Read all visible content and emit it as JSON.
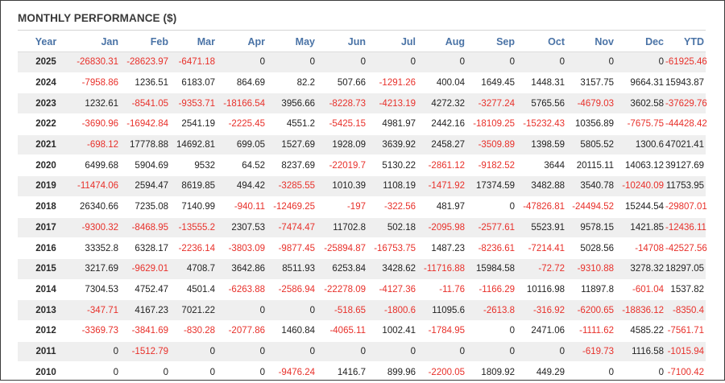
{
  "title": "MONTHLY PERFORMANCE ($)",
  "colors": {
    "negative": "#e8302a",
    "header": "#4a73a6",
    "stripe": "#efefef"
  },
  "columns": [
    "Year",
    "Jan",
    "Feb",
    "Mar",
    "Apr",
    "May",
    "Jun",
    "Jul",
    "Aug",
    "Sep",
    "Oct",
    "Nov",
    "Dec",
    "YTD"
  ],
  "chart_data": {
    "type": "table",
    "title": "MONTHLY PERFORMANCE ($)",
    "columns": [
      "Year",
      "Jan",
      "Feb",
      "Mar",
      "Apr",
      "May",
      "Jun",
      "Jul",
      "Aug",
      "Sep",
      "Oct",
      "Nov",
      "Dec",
      "YTD"
    ],
    "rows": [
      [
        "2025",
        "-26830.31",
        "-28623.97",
        "-6471.18",
        "0",
        "0",
        "0",
        "0",
        "0",
        "0",
        "0",
        "0",
        "0",
        "-61925.46"
      ],
      [
        "2024",
        "-7958.86",
        "1236.51",
        "6183.07",
        "864.69",
        "82.2",
        "507.66",
        "-1291.26",
        "400.04",
        "1649.45",
        "1448.31",
        "3157.75",
        "9664.31",
        "15943.87"
      ],
      [
        "2023",
        "1232.61",
        "-8541.05",
        "-9353.71",
        "-18166.54",
        "3956.66",
        "-8228.73",
        "-4213.19",
        "4272.32",
        "-3277.24",
        "5765.56",
        "-4679.03",
        "3602.58",
        "-37629.76"
      ],
      [
        "2022",
        "-3690.96",
        "-16942.84",
        "2541.19",
        "-2225.45",
        "4551.2",
        "-5425.15",
        "4981.97",
        "2442.16",
        "-18109.25",
        "-15232.43",
        "10356.89",
        "-7675.75",
        "-44428.42"
      ],
      [
        "2021",
        "-698.12",
        "17778.88",
        "14692.81",
        "699.05",
        "1527.69",
        "1928.09",
        "3639.92",
        "2458.27",
        "-3509.89",
        "1398.59",
        "5805.52",
        "1300.6",
        "47021.41"
      ],
      [
        "2020",
        "6499.68",
        "5904.69",
        "9532",
        "64.52",
        "8237.69",
        "-22019.7",
        "5130.22",
        "-2861.12",
        "-9182.52",
        "3644",
        "20115.11",
        "14063.12",
        "39127.69"
      ],
      [
        "2019",
        "-11474.06",
        "2594.47",
        "8619.85",
        "494.42",
        "-3285.55",
        "1010.39",
        "1108.19",
        "-1471.92",
        "17374.59",
        "3482.88",
        "3540.78",
        "-10240.09",
        "11753.95"
      ],
      [
        "2018",
        "26340.66",
        "7235.08",
        "7140.99",
        "-940.11",
        "-12469.25",
        "-197",
        "-322.56",
        "481.97",
        "0",
        "-47826.81",
        "-24494.52",
        "15244.54",
        "-29807.01"
      ],
      [
        "2017",
        "-9300.32",
        "-8468.95",
        "-13555.2",
        "2307.53",
        "-7474.47",
        "11702.8",
        "502.18",
        "-2095.98",
        "-2577.61",
        "5523.91",
        "9578.15",
        "1421.85",
        "-12436.11"
      ],
      [
        "2016",
        "33352.8",
        "6328.17",
        "-2236.14",
        "-3803.09",
        "-9877.45",
        "-25894.87",
        "-16753.75",
        "1487.23",
        "-8236.61",
        "-7214.41",
        "5028.56",
        "-14708",
        "-42527.56"
      ],
      [
        "2015",
        "3217.69",
        "-9629.01",
        "4708.7",
        "3642.86",
        "8511.93",
        "6253.84",
        "3428.62",
        "-11716.88",
        "15984.58",
        "-72.72",
        "-9310.88",
        "3278.32",
        "18297.05"
      ],
      [
        "2014",
        "7304.53",
        "4752.47",
        "4501.4",
        "-6263.88",
        "-2586.94",
        "-22278.09",
        "-4127.36",
        "-11.76",
        "-1166.29",
        "10116.98",
        "11897.8",
        "-601.04",
        "1537.82"
      ],
      [
        "2013",
        "-347.71",
        "4167.23",
        "7021.22",
        "0",
        "0",
        "-518.65",
        "-1800.6",
        "11095.6",
        "-2613.8",
        "-316.92",
        "-6200.65",
        "-18836.12",
        "-8350.4"
      ],
      [
        "2012",
        "-3369.73",
        "-3841.69",
        "-830.28",
        "-2077.86",
        "1460.84",
        "-4065.11",
        "1002.41",
        "-1784.95",
        "0",
        "2471.06",
        "-1111.62",
        "4585.22",
        "-7561.71"
      ],
      [
        "2011",
        "0",
        "-1512.79",
        "0",
        "0",
        "0",
        "0",
        "0",
        "0",
        "0",
        "0",
        "-619.73",
        "1116.58",
        "-1015.94"
      ],
      [
        "2010",
        "0",
        "0",
        "0",
        "0",
        "-9476.24",
        "1416.7",
        "899.96",
        "-2200.05",
        "1809.92",
        "449.29",
        "0",
        "0",
        "-7100.42"
      ]
    ]
  }
}
